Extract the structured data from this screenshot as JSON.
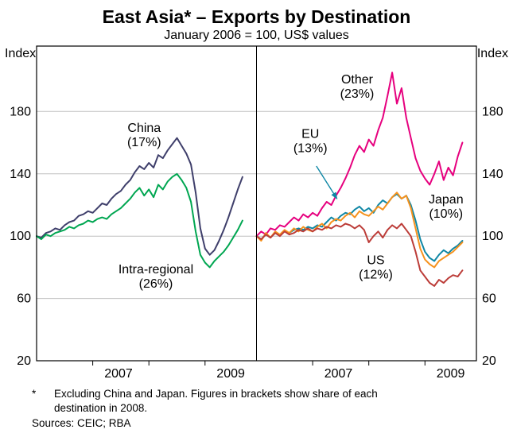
{
  "page": {
    "title": "East Asia* – Exports by Destination",
    "subtitle": "January 2006 = 100, US$ values",
    "footnote_marker": "*",
    "footnote_text": "Excluding China and Japan. Figures in brackets show share of each destination in 2008.",
    "sources": "Sources: CEIC; RBA"
  },
  "chart_data": {
    "type": "line",
    "title": "East Asia* – Exports by Destination",
    "subtitle": "January 2006 = 100, US$ values",
    "y_axis_label": "Index",
    "ylim": [
      20,
      222
    ],
    "yticks": [
      20,
      60,
      100,
      140,
      180
    ],
    "grid": "horizontal",
    "legend": "direct-labels",
    "x_start": "Jan 2006",
    "x_end": "Sep 2009",
    "x_frequency": "monthly",
    "x_points": 45,
    "x_axis_max_index": 47,
    "panels": [
      {
        "id": "left",
        "x_year_ticks": [
          12,
          24,
          36
        ],
        "x_year_labels": [
          {
            "label": "2007",
            "m": 17.5
          },
          {
            "label": "2009",
            "m": 41.5
          }
        ],
        "series": [
          {
            "name": "China",
            "share_2008": "17%",
            "color": "#3f3f6b",
            "values": [
              100,
              99,
              102,
              103,
              105,
              104,
              107,
              109,
              110,
              113,
              114,
              116,
              115,
              118,
              121,
              120,
              124,
              127,
              129,
              133,
              136,
              141,
              145,
              143,
              147,
              144,
              152,
              150,
              155,
              159,
              163,
              158,
              153,
              146,
              128,
              105,
              92,
              88,
              91,
              97,
              104,
              112,
              121,
              130,
              138
            ]
          },
          {
            "name": "Intra-regional",
            "share_2008": "26%",
            "color": "#00a651",
            "values": [
              100,
              98,
              101,
              100,
              102,
              103,
              104,
              106,
              105,
              107,
              108,
              110,
              109,
              111,
              112,
              111,
              114,
              116,
              118,
              121,
              124,
              128,
              131,
              126,
              130,
              125,
              133,
              130,
              135,
              138,
              140,
              136,
              131,
              122,
              103,
              88,
              83,
              80,
              84,
              87,
              90,
              94,
              99,
              104,
              110
            ]
          }
        ],
        "annotations": [
          {
            "name": "china-label",
            "lines": [
              "China",
              "(17%)"
            ],
            "m": 23,
            "v": 167,
            "color": "#3f3f6b"
          },
          {
            "name": "intra-regional-label",
            "lines": [
              "Intra-regional",
              "(26%)"
            ],
            "m": 25.5,
            "v": 76,
            "color": "#00a651"
          }
        ]
      },
      {
        "id": "right",
        "x_year_ticks": [
          12,
          24,
          36
        ],
        "x_year_labels": [
          {
            "label": "2007",
            "m": 17.5
          },
          {
            "label": "2009",
            "m": 41.5
          }
        ],
        "series": [
          {
            "name": "Other",
            "share_2008": "23%",
            "color": "#e6007e",
            "values": [
              100,
              103,
              101,
              105,
              104,
              107,
              106,
              109,
              112,
              110,
              114,
              112,
              115,
              113,
              118,
              122,
              120,
              126,
              131,
              137,
              144,
              152,
              158,
              154,
              162,
              158,
              168,
              176,
              190,
              205,
              185,
              195,
              176,
              163,
              150,
              142,
              137,
              133,
              140,
              148,
              136,
              144,
              139,
              151,
              160
            ]
          },
          {
            "name": "EU",
            "share_2008": "13%",
            "color": "#0f87a5",
            "values": [
              100,
              98,
              101,
              99,
              102,
              101,
              103,
              102,
              104,
              105,
              104,
              106,
              105,
              107,
              106,
              109,
              112,
              110,
              113,
              115,
              114,
              117,
              119,
              116,
              118,
              115,
              120,
              123,
              121,
              125,
              127,
              124,
              126,
              120,
              110,
              98,
              90,
              86,
              84,
              88,
              91,
              89,
              92,
              94,
              97
            ]
          },
          {
            "name": "Japan",
            "share_2008": "10%",
            "color": "#f6921e",
            "values": [
              100,
              97,
              102,
              99,
              103,
              101,
              104,
              102,
              105,
              103,
              106,
              104,
              103,
              106,
              108,
              105,
              109,
              111,
              110,
              113,
              115,
              112,
              116,
              114,
              113,
              116,
              119,
              117,
              121,
              125,
              128,
              124,
              126,
              118,
              105,
              92,
              85,
              82,
              80,
              84,
              86,
              88,
              90,
              93,
              96
            ]
          },
          {
            "name": "US",
            "share_2008": "12%",
            "color": "#bc3c38",
            "values": [
              100,
              98,
              101,
              99,
              102,
              100,
              103,
              101,
              102,
              104,
              103,
              105,
              103,
              105,
              104,
              106,
              105,
              107,
              106,
              108,
              107,
              105,
              107,
              104,
              96,
              100,
              103,
              99,
              104,
              107,
              105,
              108,
              104,
              100,
              90,
              78,
              74,
              70,
              68,
              72,
              70,
              73,
              75,
              74,
              78
            ]
          }
        ],
        "annotations": [
          {
            "name": "other-label",
            "lines": [
              "Other",
              "(23%)"
            ],
            "m": 21.5,
            "v": 198,
            "color": "#e6007e"
          },
          {
            "name": "eu-label",
            "lines": [
              "EU",
              "(13%)"
            ],
            "m": 11.5,
            "v": 163,
            "color": "#0f87a5",
            "arrow": {
              "from_m": 12.8,
              "from_v": 145,
              "to_m": 17.2,
              "to_v": 124
            }
          },
          {
            "name": "japan-label",
            "lines": [
              "Japan",
              "(10%)"
            ],
            "m": 40.5,
            "v": 121,
            "color": "#f6921e"
          },
          {
            "name": "us-label",
            "lines": [
              "US",
              "(12%)"
            ],
            "m": 25.5,
            "v": 82,
            "color": "#bc3c38"
          }
        ]
      }
    ]
  }
}
